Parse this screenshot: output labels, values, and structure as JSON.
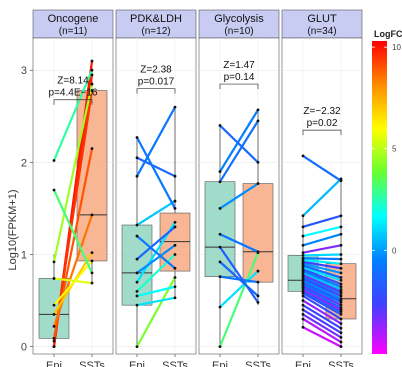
{
  "chart_data": {
    "type": "paired boxplot with connecting lines",
    "ylabel": "Log10(FPKM+1)",
    "ylim": [
      -0.08,
      3.35
    ],
    "y_ticks": [
      0,
      1,
      2,
      3
    ],
    "x_categories": [
      "Epi",
      "SSTs"
    ],
    "group_colors": {
      "Epi": "#8fd6bf",
      "SSTs": "#f7a981"
    },
    "legend": {
      "title": "LogFC",
      "range": [
        -5.1,
        10.3
      ],
      "ticks": [
        10,
        5,
        0
      ],
      "colorscale": [
        "#ff0000",
        "#ff8c00",
        "#ffff00",
        "#66ff33",
        "#00ffff",
        "#0080ff",
        "#4040ff",
        "#ff00ff"
      ]
    },
    "panels": [
      {
        "id": "oncogene",
        "title": "Oncogene",
        "subtitle": "(n=11)",
        "stat_z": "Z=8.14",
        "stat_p": "p=4.4E−16",
        "bracket_y": 2.68,
        "box": {
          "Epi": {
            "q1": 0.09,
            "median": 0.35,
            "q3": 0.74,
            "min": 0.0,
            "max": 1.0
          },
          "SSTs": {
            "q1": 0.93,
            "median": 1.43,
            "q3": 2.78,
            "min": 0.69,
            "max": 3.1
          }
        },
        "pairs": [
          {
            "epi": 0.0,
            "ssts": 3.1,
            "logfc": 10.0
          },
          {
            "epi": 0.0,
            "ssts": 2.95,
            "logfc": 9.8
          },
          {
            "epi": 0.06,
            "ssts": 2.78,
            "logfc": 9.5
          },
          {
            "epi": 0.09,
            "ssts": 2.15,
            "logfc": 9.0
          },
          {
            "epi": 0.22,
            "ssts": 1.43,
            "logfc": 8.5
          },
          {
            "epi": 0.35,
            "ssts": 1.02,
            "logfc": 7.0
          },
          {
            "epi": 0.45,
            "ssts": 0.93,
            "logfc": 6.0
          },
          {
            "epi": 0.74,
            "ssts": 0.69,
            "logfc": 5.5
          },
          {
            "epi": 0.92,
            "ssts": 2.85,
            "logfc": 4.5
          },
          {
            "epi": 1.7,
            "ssts": 0.8,
            "logfc": 3.0
          },
          {
            "epi": 2.02,
            "ssts": 3.0,
            "logfc": 2.5
          }
        ]
      },
      {
        "id": "pdk-ldh",
        "title": "PDK&LDH",
        "subtitle": "(n=12)",
        "stat_z": "Z=2.38",
        "stat_p": "p=0.017",
        "bracket_y": 2.8,
        "box": {
          "Epi": {
            "q1": 0.45,
            "median": 0.8,
            "q3": 1.32,
            "min": 0.0,
            "max": 2.27
          },
          "SSTs": {
            "q1": 0.82,
            "median": 1.14,
            "q3": 1.45,
            "min": 0.53,
            "max": 2.6
          }
        },
        "pairs": [
          {
            "epi": 0.0,
            "ssts": 0.75,
            "logfc": 4.0
          },
          {
            "epi": 0.45,
            "ssts": 0.53,
            "logfc": 1.0
          },
          {
            "epi": 0.55,
            "ssts": 0.65,
            "logfc": 1.5
          },
          {
            "epi": 0.6,
            "ssts": 1.0,
            "logfc": 2.0
          },
          {
            "epi": 0.7,
            "ssts": 1.35,
            "logfc": 1.0
          },
          {
            "epi": 0.8,
            "ssts": 1.1,
            "logfc": -0.5
          },
          {
            "epi": 0.95,
            "ssts": 1.3,
            "logfc": -1.5
          },
          {
            "epi": 1.2,
            "ssts": 0.85,
            "logfc": -1.0
          },
          {
            "epi": 1.32,
            "ssts": 1.58,
            "logfc": 0.5
          },
          {
            "epi": 1.85,
            "ssts": 2.6,
            "logfc": -1.0
          },
          {
            "epi": 2.05,
            "ssts": 1.85,
            "logfc": -1.5
          },
          {
            "epi": 2.27,
            "ssts": 1.5,
            "logfc": -1.0
          }
        ]
      },
      {
        "id": "glycolysis",
        "title": "Glycolysis",
        "subtitle": "(n=10)",
        "stat_z": "Z=1.47",
        "stat_p": "p=0.14",
        "bracket_y": 2.85,
        "box": {
          "Epi": {
            "q1": 0.76,
            "median": 1.08,
            "q3": 1.79,
            "min": 0.0,
            "max": 2.4
          },
          "SSTs": {
            "q1": 0.7,
            "median": 1.03,
            "q3": 1.77,
            "min": 0.45,
            "max": 2.57
          }
        },
        "pairs": [
          {
            "epi": 0.0,
            "ssts": 1.02,
            "logfc": 3.0
          },
          {
            "epi": 0.43,
            "ssts": 0.82,
            "logfc": 1.0
          },
          {
            "epi": 0.76,
            "ssts": 0.7,
            "logfc": -1.0
          },
          {
            "epi": 0.92,
            "ssts": 0.55,
            "logfc": -1.5
          },
          {
            "epi": 1.08,
            "ssts": 0.48,
            "logfc": -1.8
          },
          {
            "epi": 1.22,
            "ssts": 1.03,
            "logfc": -1.0
          },
          {
            "epi": 1.5,
            "ssts": 1.77,
            "logfc": -0.5
          },
          {
            "epi": 1.79,
            "ssts": 2.45,
            "logfc": -1.2
          },
          {
            "epi": 1.9,
            "ssts": 2.57,
            "logfc": -0.8
          },
          {
            "epi": 2.4,
            "ssts": 2.0,
            "logfc": -1.5
          }
        ]
      },
      {
        "id": "glut",
        "title": "GLUT",
        "subtitle": "(n=34)",
        "stat_z": "Z=−2.32",
        "stat_p": "p=0.02",
        "bracket_y": 2.35,
        "box": {
          "Epi": {
            "q1": 0.6,
            "median": 0.72,
            "q3": 0.99,
            "min": 0.21,
            "max": 1.42
          },
          "SSTs": {
            "q1": 0.3,
            "median": 0.52,
            "q3": 0.9,
            "min": 0.0,
            "max": 1.82
          }
        },
        "pairs": [
          {
            "epi": 0.21,
            "ssts": 0.0,
            "logfc": -4.5
          },
          {
            "epi": 0.3,
            "ssts": 0.05,
            "logfc": -4.2
          },
          {
            "epi": 0.35,
            "ssts": 0.1,
            "logfc": -3.5
          },
          {
            "epi": 0.4,
            "ssts": 0.15,
            "logfc": -3.0
          },
          {
            "epi": 0.45,
            "ssts": 0.2,
            "logfc": -2.8
          },
          {
            "epi": 0.5,
            "ssts": 0.25,
            "logfc": -3.8
          },
          {
            "epi": 0.55,
            "ssts": 0.3,
            "logfc": -2.5
          },
          {
            "epi": 0.58,
            "ssts": 0.35,
            "logfc": -2.2
          },
          {
            "epi": 0.6,
            "ssts": 0.38,
            "logfc": -1.8
          },
          {
            "epi": 0.62,
            "ssts": 0.4,
            "logfc": -4.0
          },
          {
            "epi": 0.64,
            "ssts": 0.42,
            "logfc": -1.5
          },
          {
            "epi": 0.66,
            "ssts": 0.45,
            "logfc": -3.2
          },
          {
            "epi": 0.68,
            "ssts": 0.48,
            "logfc": -1.0
          },
          {
            "epi": 0.7,
            "ssts": 0.5,
            "logfc": -2.0
          },
          {
            "epi": 0.72,
            "ssts": 0.52,
            "logfc": -0.5
          },
          {
            "epi": 0.74,
            "ssts": 0.55,
            "logfc": -2.6
          },
          {
            "epi": 0.76,
            "ssts": 0.58,
            "logfc": -1.2
          },
          {
            "epi": 0.78,
            "ssts": 0.6,
            "logfc": -3.4
          },
          {
            "epi": 0.8,
            "ssts": 0.62,
            "logfc": 0.5
          },
          {
            "epi": 0.82,
            "ssts": 0.65,
            "logfc": -0.8
          },
          {
            "epi": 0.84,
            "ssts": 0.68,
            "logfc": -2.4
          },
          {
            "epi": 0.86,
            "ssts": 0.72,
            "logfc": 1.0
          },
          {
            "epi": 0.88,
            "ssts": 0.75,
            "logfc": -1.6
          },
          {
            "epi": 0.9,
            "ssts": 0.8,
            "logfc": -0.3
          },
          {
            "epi": 0.92,
            "ssts": 0.85,
            "logfc": -2.9
          },
          {
            "epi": 0.94,
            "ssts": 0.9,
            "logfc": 1.2
          },
          {
            "epi": 0.96,
            "ssts": 0.95,
            "logfc": -1.1
          },
          {
            "epi": 0.99,
            "ssts": 1.0,
            "logfc": 0.8
          },
          {
            "epi": 1.02,
            "ssts": 1.1,
            "logfc": -3.6
          },
          {
            "epi": 1.1,
            "ssts": 1.22,
            "logfc": -0.6
          },
          {
            "epi": 1.2,
            "ssts": 1.3,
            "logfc": 1.5
          },
          {
            "epi": 1.3,
            "ssts": 1.42,
            "logfc": -2.1
          },
          {
            "epi": 1.42,
            "ssts": 1.82,
            "logfc": 0.3
          },
          {
            "epi": 2.07,
            "ssts": 1.8,
            "logfc": -1.3
          }
        ]
      }
    ]
  }
}
